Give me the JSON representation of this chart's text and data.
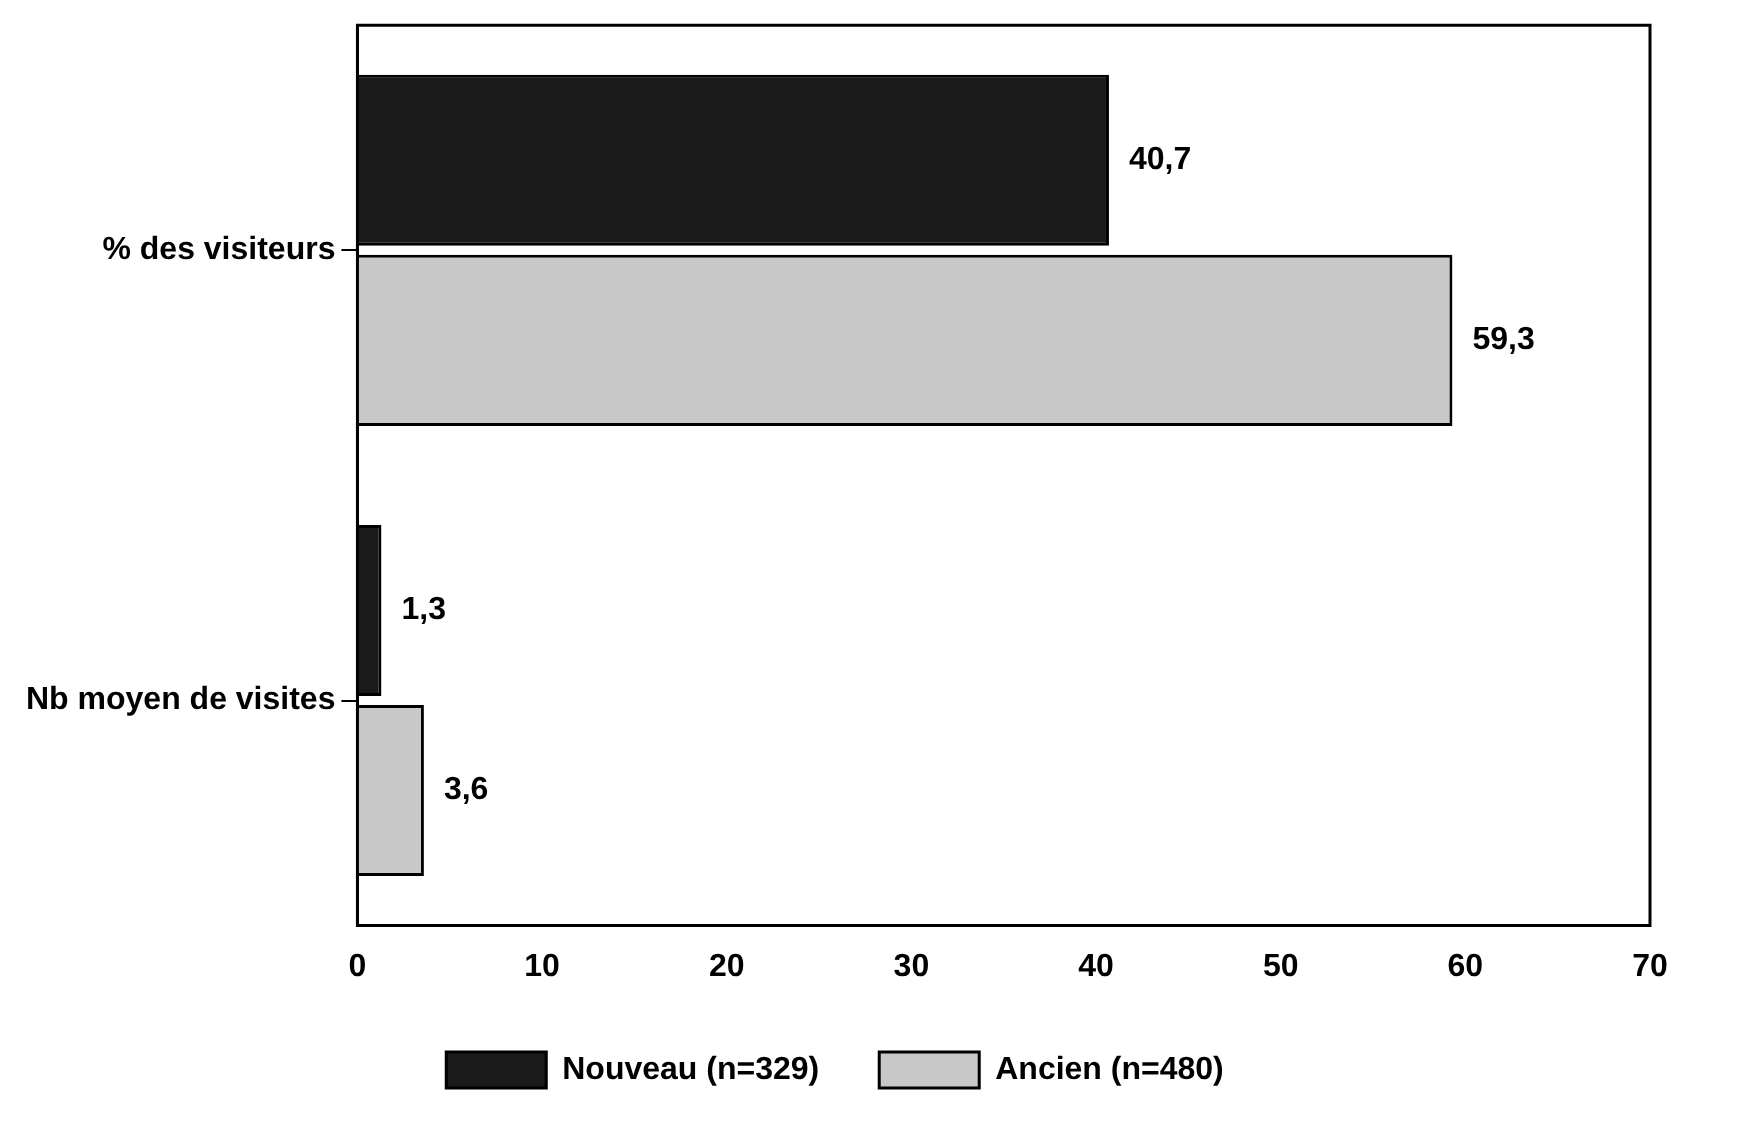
{
  "chart_data": {
    "type": "bar",
    "orientation": "horizontal",
    "categories": [
      "% des visiteurs",
      "Nb moyen de visites"
    ],
    "series": [
      {
        "name": "Nouveau (n=329)",
        "color": "#1a1a1a",
        "values": [
          40.7,
          1.3
        ],
        "value_labels": [
          "40,7",
          "1,3"
        ]
      },
      {
        "name": "Ancien (n=480)",
        "color": "#c8c8c8",
        "values": [
          59.3,
          3.6
        ],
        "value_labels": [
          "59,3",
          "3,6"
        ]
      }
    ],
    "xlim": [
      0,
      70
    ],
    "xticks": [
      0,
      10,
      20,
      30,
      40,
      50,
      60,
      70
    ],
    "grid": false,
    "legend": "bottom"
  }
}
